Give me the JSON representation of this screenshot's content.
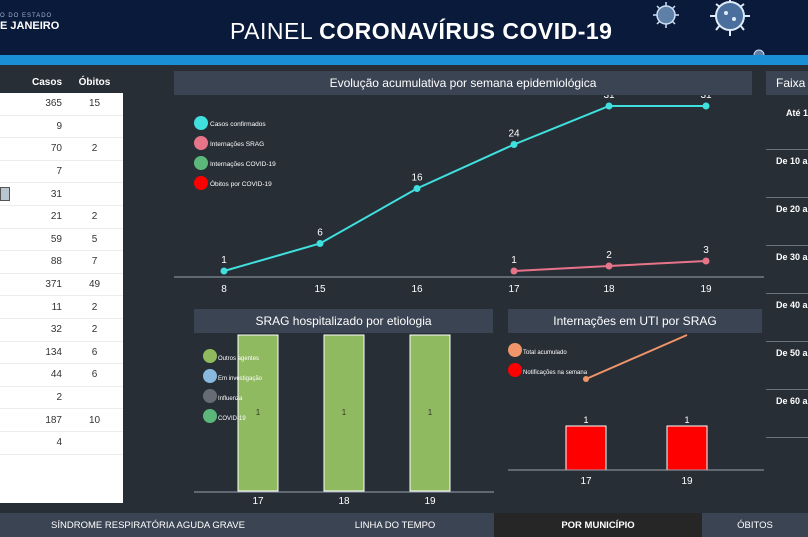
{
  "header": {
    "logo_line1": "O DO ESTADO",
    "logo_line2": "E JANEIRO",
    "title_light": "PAINEL ",
    "title_bold": "CORONAVÍRUS COVID-19"
  },
  "table": {
    "headers": [
      "",
      "Casos",
      "Óbitos"
    ],
    "rows": [
      {
        "casos": "365",
        "obitos": "15"
      },
      {
        "casos": "9",
        "obitos": ""
      },
      {
        "casos": "70",
        "obitos": "2"
      },
      {
        "casos": "7",
        "obitos": ""
      },
      {
        "casos": "31",
        "obitos": ""
      },
      {
        "casos": "21",
        "obitos": "2"
      },
      {
        "casos": "59",
        "obitos": "5"
      },
      {
        "casos": "88",
        "obitos": "7"
      },
      {
        "casos": "371",
        "obitos": "49"
      },
      {
        "casos": "11",
        "obitos": "2"
      },
      {
        "casos": "32",
        "obitos": "2"
      },
      {
        "casos": "134",
        "obitos": "6"
      },
      {
        "casos": "44",
        "obitos": "6"
      },
      {
        "casos": "2",
        "obitos": ""
      },
      {
        "casos": "187",
        "obitos": "10"
      },
      {
        "casos": "4",
        "obitos": ""
      }
    ]
  },
  "right_panel": {
    "title": "Faixa",
    "rows": [
      "Até 1",
      "De 10 a",
      "De 20 a",
      "De 30 a",
      "De 40 a",
      "De 50 a",
      "De 60 a"
    ]
  },
  "tabs": [
    {
      "label": "SÍNDROME RESPIRATÓRIA AGUDA GRAVE",
      "active": false
    },
    {
      "label": "LINHA DO TEMPO",
      "active": false
    },
    {
      "label": "POR MUNICÍPIO",
      "active": true
    },
    {
      "label": "ÓBITOS",
      "active": false
    }
  ],
  "colors": {
    "cyan": "#3fe0de",
    "pink": "#e8748a",
    "green": "#5cb87a",
    "red": "#ff0000",
    "olive": "#8fba5f",
    "lightblue": "#8ab9e0",
    "gray": "#666c74",
    "orange": "#f0956a"
  },
  "chart_data": [
    {
      "type": "line",
      "title": "Evolução acumulativa por semana epidemiológica",
      "categories": [
        "8",
        "15",
        "16",
        "17",
        "18",
        "19"
      ],
      "legend": [
        "Casos confirmados",
        "Internações SRAG",
        "Internações COVID-19",
        "Óbitos por COVID-19"
      ],
      "series": [
        {
          "name": "Casos confirmados",
          "color": "#3fe0de",
          "x": [
            "8",
            "15",
            "16",
            "17",
            "18",
            "19"
          ],
          "values": [
            1,
            6,
            16,
            24,
            31,
            31
          ]
        },
        {
          "name": "Internações SRAG",
          "color": "#e8748a",
          "x": [
            "17",
            "18",
            "19"
          ],
          "values": [
            1,
            2,
            3
          ]
        }
      ],
      "ylim": [
        0,
        31
      ]
    },
    {
      "type": "bar",
      "title": "SRAG hospitalizado por etiologia",
      "categories": [
        "17",
        "18",
        "19"
      ],
      "legend": [
        "Outros agentes",
        "Em investigação",
        "Influenza",
        "COVID-19"
      ],
      "series": [
        {
          "name": "Outros agentes",
          "color": "#8fba5f",
          "values": [
            1,
            1,
            1
          ]
        }
      ]
    },
    {
      "type": "bar",
      "title": "Internações em UTI por SRAG",
      "categories": [
        "17",
        "19"
      ],
      "legend": [
        "Total acumulado",
        "Notificações na semana"
      ],
      "series": [
        {
          "name": "Notificações na semana",
          "color": "#ff0000",
          "values": [
            1,
            1
          ]
        },
        {
          "name": "Total acumulado",
          "color": "#f0956a",
          "values": [
            1,
            2
          ]
        }
      ]
    }
  ]
}
